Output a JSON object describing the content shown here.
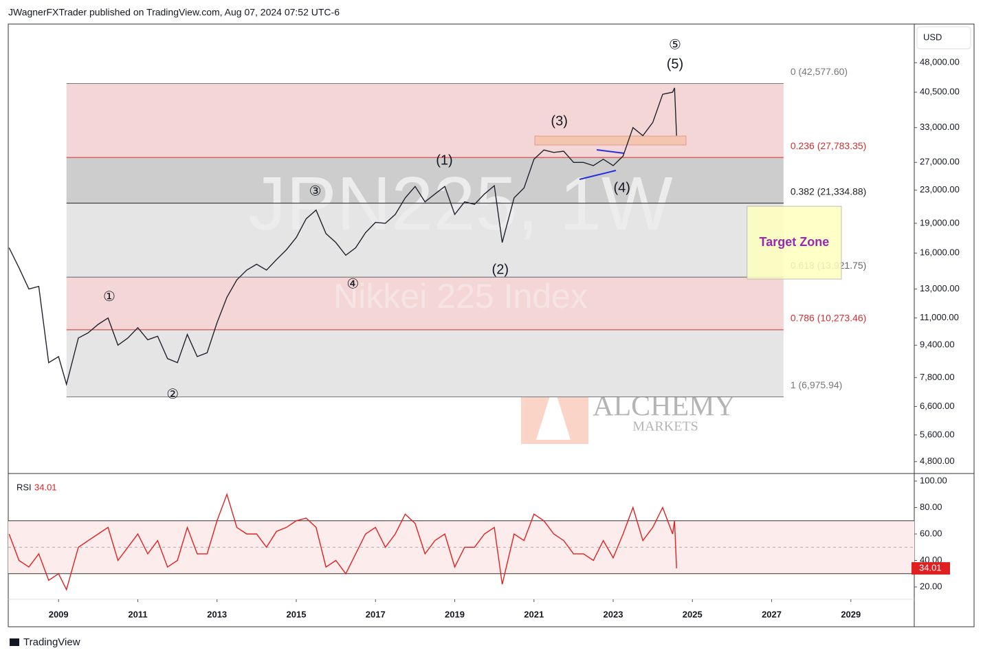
{
  "header": "JWagnerFXTrader published on TradingView.com, Aug 07, 2024 07:52 UTC-6",
  "footer": "TradingView",
  "currency": "USD",
  "watermark": {
    "symbol": "JPN225, 1W",
    "name": "Nikkei 225 Index"
  },
  "logo": {
    "name": "ALCHEMY",
    "sub": "MARKETS"
  },
  "chart_data": [
    {
      "type": "line",
      "log_scale": true,
      "color": "#1e222d",
      "xlim": [
        2007.73,
        2030.6
      ],
      "xticks": [
        2009,
        2011,
        2013,
        2015,
        2017,
        2019,
        2021,
        2023,
        2025,
        2027,
        2029
      ],
      "ylim": [
        4500,
        60000
      ],
      "yticks": [
        {
          "value": 48000,
          "label": "48,000.00"
        },
        {
          "value": 40500,
          "label": "40,500.00"
        },
        {
          "value": 33000,
          "label": "33,000.00"
        },
        {
          "value": 27000,
          "label": "27,000.00"
        },
        {
          "value": 23000,
          "label": "23,000.00"
        },
        {
          "value": 19000,
          "label": "19,000.00"
        },
        {
          "value": 16000,
          "label": "16,000.00"
        },
        {
          "value": 13000,
          "label": "13,000.00"
        },
        {
          "value": 11000,
          "label": "11,000.00"
        },
        {
          "value": 9400,
          "label": "9,400.00"
        },
        {
          "value": 7800,
          "label": "7,800.00"
        },
        {
          "value": 6600,
          "label": "6,600.00"
        },
        {
          "value": 5600,
          "label": "5,600.00"
        },
        {
          "value": 4800,
          "label": "4,800.00"
        }
      ],
      "x": [
        2007.75,
        2008.0,
        2008.25,
        2008.5,
        2008.75,
        2009.0,
        2009.2,
        2009.5,
        2009.75,
        2010.0,
        2010.25,
        2010.5,
        2010.75,
        2011.0,
        2011.25,
        2011.5,
        2011.75,
        2012.0,
        2012.25,
        2012.5,
        2012.75,
        2013.0,
        2013.25,
        2013.5,
        2013.75,
        2014.0,
        2014.25,
        2014.5,
        2014.75,
        2015.0,
        2015.25,
        2015.5,
        2015.75,
        2016.0,
        2016.25,
        2016.5,
        2016.75,
        2017.0,
        2017.25,
        2017.5,
        2017.75,
        2018.0,
        2018.25,
        2018.5,
        2018.75,
        2019.0,
        2019.25,
        2019.5,
        2019.75,
        2020.0,
        2020.2,
        2020.5,
        2020.75,
        2021.0,
        2021.25,
        2021.5,
        2021.75,
        2022.0,
        2022.25,
        2022.5,
        2022.75,
        2023.0,
        2023.25,
        2023.5,
        2023.75,
        2024.0,
        2024.25,
        2024.5,
        2024.55,
        2024.6
      ],
      "values": [
        16500,
        14700,
        13000,
        13200,
        8500,
        8800,
        7500,
        9800,
        10100,
        10600,
        11000,
        9400,
        9800,
        10400,
        9700,
        9900,
        8700,
        8500,
        10000,
        8800,
        9000,
        10700,
        12400,
        13700,
        14500,
        15000,
        14500,
        15400,
        16300,
        17500,
        19500,
        20500,
        17900,
        17000,
        15800,
        16500,
        18000,
        19100,
        19000,
        20000,
        22000,
        23500,
        21500,
        22500,
        23500,
        20000,
        21500,
        21200,
        22500,
        23600,
        17000,
        22000,
        23300,
        27500,
        29000,
        28600,
        28800,
        27000,
        27000,
        26500,
        27500,
        26500,
        28000,
        33000,
        31500,
        34000,
        40000,
        40500,
        41500,
        31500
      ],
      "fib": {
        "x": [
          2009.2,
          2027.3
        ],
        "levels": [
          {
            "value": 42577.6,
            "label": "0 (42,577.60)",
            "color": "#777777"
          },
          {
            "value": 27783.35,
            "label": "0.236 (27,783.35)",
            "color": "#d32f2f"
          },
          {
            "value": 21334.88,
            "label": "0.382 (21,334.88)",
            "color": "#222222"
          },
          {
            "value": 13921.75,
            "label": "0.618 (13,921.75)",
            "color": "#666666"
          },
          {
            "value": 10273.46,
            "label": "0.786 (10,273.46)",
            "color": "#d32f2f"
          },
          {
            "value": 6975.94,
            "label": "1 (6,975.94)",
            "color": "#777777"
          }
        ],
        "zone_colors": [
          "#f5d6d6",
          "#cdcdcd",
          "#e5e5e5",
          "#f5d6d6",
          "#e5e5e5"
        ]
      },
      "target_zone": {
        "label": "Target Zone",
        "x": [
          2026.38,
          2028.76
        ],
        "y": [
          13770,
          20960
        ]
      },
      "annotations": [
        {
          "text": "①",
          "x": 2010.28,
          "y": 12400
        },
        {
          "text": "②",
          "x": 2011.88,
          "y": 7050
        },
        {
          "text": "③",
          "x": 2015.48,
          "y": 22770
        },
        {
          "text": "④",
          "x": 2016.43,
          "y": 13340
        },
        {
          "text": "⑤",
          "x": 2024.56,
          "y": 52970
        },
        {
          "text": "(5)",
          "x": 2024.56,
          "y": 47430
        },
        {
          "text": "(1)",
          "x": 2018.74,
          "y": 27230
        },
        {
          "text": "(2)",
          "x": 2020.15,
          "y": 14490
        },
        {
          "text": "(3)",
          "x": 2021.64,
          "y": 34120
        },
        {
          "text": "(4)",
          "x": 2023.22,
          "y": 23220
        }
      ]
    },
    {
      "type": "line",
      "title": "RSI",
      "ylim": [
        10.65,
        105.2
      ],
      "band": [
        30,
        70
      ],
      "midline": 50,
      "band_color": "#fdecec",
      "yticks": [
        {
          "value": 100,
          "label": "100.00"
        },
        {
          "value": 80,
          "label": "80.00"
        },
        {
          "value": 60,
          "label": "60.00"
        },
        {
          "value": 40,
          "label": "40.00"
        },
        {
          "value": 20,
          "label": "20.00"
        }
      ],
      "series": [
        {
          "name": "RSI",
          "color": "#e02020",
          "values": [
            60,
            40,
            35,
            45,
            25,
            30,
            18,
            50,
            55,
            60,
            65,
            40,
            50,
            60,
            45,
            55,
            35,
            40,
            65,
            45,
            45,
            70,
            90,
            65,
            60,
            60,
            50,
            62,
            65,
            70,
            72,
            65,
            35,
            40,
            30,
            45,
            60,
            65,
            50,
            60,
            75,
            68,
            45,
            55,
            60,
            35,
            50,
            50,
            60,
            65,
            22,
            60,
            55,
            75,
            70,
            60,
            55,
            45,
            45,
            40,
            55,
            42,
            60,
            80,
            55,
            65,
            80,
            60,
            70,
            34.01
          ]
        }
      ]
    }
  ]
}
